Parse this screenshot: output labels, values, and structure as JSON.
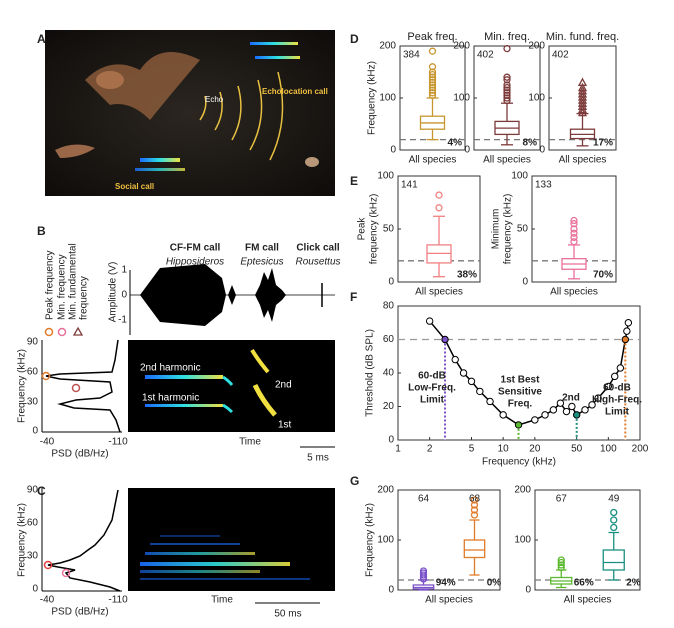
{
  "panel_labels": [
    "A",
    "B",
    "C",
    "D",
    "E",
    "F",
    "G"
  ],
  "panel_a": {
    "labels": [
      "Echo",
      "Echolocation call",
      "Social call"
    ]
  },
  "panel_b": {
    "legend": [
      [
        "Peak frequency"
      ],
      [
        "Min. frequency"
      ],
      [
        "Min. fundamental",
        "frequency"
      ]
    ],
    "calls": [
      {
        "name": "CF-FM call",
        "genus": "Hipposideros"
      },
      {
        "name": "FM call",
        "genus": "Eptesicus"
      },
      {
        "name": "Click call",
        "genus": "Rousettus"
      }
    ],
    "amplitude_label": "Amplitude (V)",
    "amplitude_ticks": [
      1,
      0,
      -1
    ],
    "frequency_label": "Frequency (kHz)",
    "frequency_ticks": [
      90,
      60,
      30,
      0
    ],
    "psd_label": "PSD (dB/Hz)",
    "psd_ticks": [
      -40,
      -110
    ],
    "time_label": "Time",
    "scale_label": "5 ms",
    "annotations": [
      "2nd harmonic",
      "1st harmonic",
      "2nd",
      "1st"
    ]
  },
  "panel_c": {
    "frequency_label": "Frequency (kHz)",
    "frequency_ticks": [
      90,
      60,
      30,
      0
    ],
    "psd_label": "PSD (dB/Hz)",
    "psd_ticks": [
      -40,
      -110
    ],
    "time_label": "Time",
    "scale_label": "50 ms"
  },
  "chart_data": [
    {
      "type": "box",
      "title": "Peak freq.",
      "ylabel": "Frequency (kHz)",
      "xlabel": "All species",
      "ylim": [
        0,
        200
      ],
      "yticks": [
        0,
        100,
        200
      ],
      "threshold": 20,
      "boxes": [
        {
          "color": "#c8962e",
          "n": 384,
          "percent": "4%",
          "marker": "circle",
          "whisker_low": 20,
          "q1": 40,
          "median": 52,
          "q3": 65,
          "whisker_high": 100,
          "outliers": [
            105,
            110,
            115,
            120,
            125,
            130,
            135,
            140,
            145,
            150,
            160,
            190
          ]
        }
      ]
    },
    {
      "type": "box",
      "title": "Min. freq.",
      "xlabel": "All species",
      "ylim": [
        0,
        200
      ],
      "yticks": [
        0,
        100,
        200
      ],
      "threshold": 20,
      "boxes": [
        {
          "color": "#7d3a3a",
          "n": 402,
          "percent": "8%",
          "marker": "circle",
          "whisker_low": 10,
          "q1": 30,
          "median": 42,
          "q3": 55,
          "whisker_high": 90,
          "outliers": [
            95,
            100,
            105,
            110,
            115,
            120,
            125,
            135,
            140,
            195
          ]
        }
      ]
    },
    {
      "type": "box",
      "title": "Min. fund. freq.",
      "xlabel": "All species",
      "ylim": [
        0,
        200
      ],
      "yticks": [
        0,
        100,
        200
      ],
      "threshold": 20,
      "boxes": [
        {
          "color": "#7d3a3a",
          "n": 402,
          "percent": "17%",
          "marker": "triangle",
          "whisker_low": 8,
          "q1": 22,
          "median": 30,
          "q3": 40,
          "whisker_high": 70,
          "outliers": [
            72,
            78,
            84,
            90,
            96,
            102,
            108,
            114,
            120,
            130
          ]
        }
      ]
    },
    {
      "type": "box",
      "ylabel_lines": [
        "Peak",
        "frequency (kHz)"
      ],
      "xlabel": "All species",
      "ylim": [
        0,
        100
      ],
      "yticks": [
        0,
        50,
        100
      ],
      "threshold": 20,
      "boxes": [
        {
          "color": "#f08080",
          "n": 141,
          "percent": "38%",
          "marker": "circle",
          "whisker_low": 5,
          "q1": 18,
          "median": 27,
          "q3": 35,
          "whisker_high": 62,
          "outliers": [
            70,
            82
          ]
        }
      ]
    },
    {
      "type": "box",
      "ylabel_lines": [
        "Minimum",
        "frequency (kHz)"
      ],
      "xlabel": "All species",
      "ylim": [
        0,
        100
      ],
      "yticks": [
        0,
        50,
        100
      ],
      "threshold": 20,
      "boxes": [
        {
          "color": "#e8709a",
          "n": 133,
          "percent": "70%",
          "marker": "circle",
          "whisker_low": 3,
          "q1": 12,
          "median": 17,
          "q3": 22,
          "whisker_high": 35,
          "outliers": [
            38,
            42,
            46,
            50,
            55,
            58
          ]
        }
      ]
    },
    {
      "type": "line",
      "ylabel": "Threshold (dB SPL)",
      "xlabel": "Frequency (kHz)",
      "log_x": true,
      "xlim": [
        1,
        200
      ],
      "xticks": [
        1,
        2,
        5,
        10,
        20,
        50,
        100,
        200
      ],
      "ylim": [
        0,
        80
      ],
      "yticks": [
        0,
        20,
        40,
        60,
        80
      ],
      "reference": 60,
      "color": "#000000",
      "x": [
        2,
        2.8,
        3.5,
        4.2,
        5,
        6,
        7.5,
        10,
        14,
        20,
        25,
        30,
        35,
        40,
        45,
        50,
        60,
        70,
        80,
        100,
        115,
        130,
        145,
        150,
        155
      ],
      "values": [
        71,
        60,
        48,
        40,
        35,
        29,
        23,
        15,
        9,
        12,
        15,
        18,
        22,
        17,
        20,
        15,
        18,
        21,
        25,
        32,
        38,
        43,
        60,
        65,
        70
      ],
      "highlights": [
        {
          "index": 1,
          "color": "#7b52c8",
          "label": [
            "60-dB",
            "Low-Freq.",
            "Limit"
          ]
        },
        {
          "index": 8,
          "color": "#5cb82e",
          "label": [
            "1st Best",
            "Sensitive",
            "Freq."
          ]
        },
        {
          "index": 15,
          "color": "#1a9080",
          "label": [
            "2nd"
          ]
        },
        {
          "index": 22,
          "color": "#e07b2a",
          "label": [
            "60-dB",
            "High-Freq.",
            "Limit"
          ]
        }
      ]
    },
    {
      "type": "box",
      "ylabel": "Frequency (kHz)",
      "xlabel": "All species",
      "ylim": [
        0,
        200
      ],
      "yticks": [
        0,
        100,
        200
      ],
      "threshold": 20,
      "boxes": [
        {
          "color": "#7b52c8",
          "n": 64,
          "percent": "94%",
          "marker": "circle",
          "whisker_low": 0,
          "q1": 2,
          "median": 5,
          "q3": 10,
          "whisker_high": 20,
          "outliers": [
            22,
            26,
            30,
            34,
            38
          ]
        },
        {
          "color": "#e07b2a",
          "n": 68,
          "percent": "0%",
          "marker": "circle",
          "whisker_low": 30,
          "q1": 65,
          "median": 80,
          "q3": 100,
          "whisker_high": 140,
          "outliers": [
            150,
            160,
            170,
            180
          ]
        }
      ]
    },
    {
      "type": "box",
      "xlabel": "All species",
      "ylim": [
        0,
        200
      ],
      "yticks": [
        0,
        100,
        200
      ],
      "threshold": 20,
      "boxes": [
        {
          "color": "#5cb82e",
          "n": 67,
          "percent": "66%",
          "marker": "circle",
          "whisker_low": 5,
          "q1": 12,
          "median": 18,
          "q3": 25,
          "whisker_high": 40,
          "outliers": [
            45,
            50,
            55,
            60
          ]
        },
        {
          "color": "#1a9080",
          "n": 49,
          "percent": "2%",
          "marker": "circle",
          "whisker_low": 20,
          "q1": 40,
          "median": 55,
          "q3": 80,
          "whisker_high": 115,
          "outliers": [
            125,
            140,
            155
          ]
        }
      ]
    }
  ]
}
